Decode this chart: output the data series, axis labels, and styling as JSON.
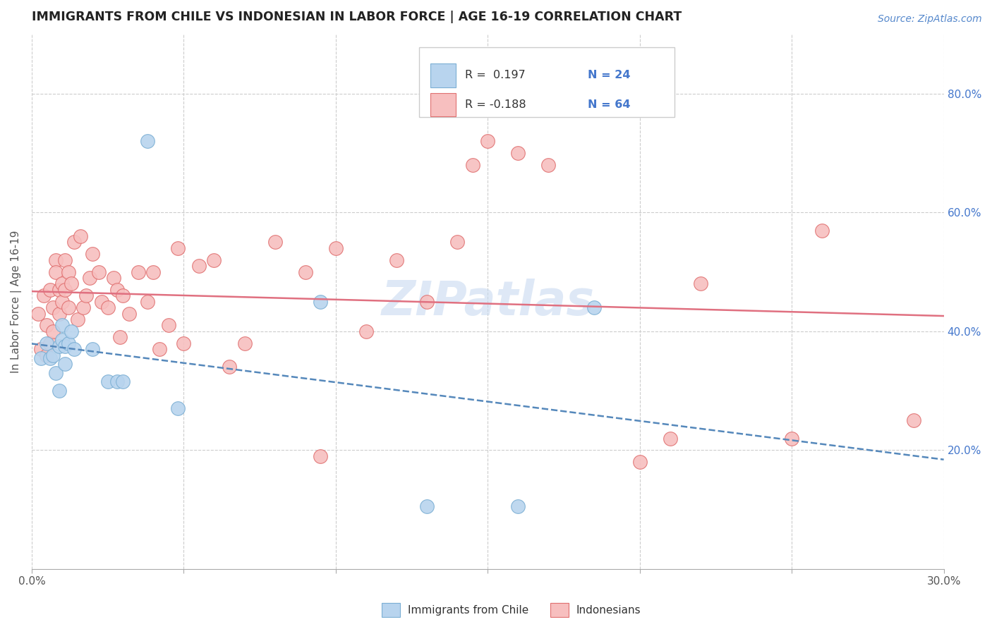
{
  "title": "IMMIGRANTS FROM CHILE VS INDONESIAN IN LABOR FORCE | AGE 16-19 CORRELATION CHART",
  "source": "Source: ZipAtlas.com",
  "ylabel": "In Labor Force | Age 16-19",
  "xlim": [
    0.0,
    0.3
  ],
  "ylim": [
    0.0,
    0.9
  ],
  "xticks": [
    0.0,
    0.05,
    0.1,
    0.15,
    0.2,
    0.25,
    0.3
  ],
  "xticklabels": [
    "0.0%",
    "",
    "",
    "",
    "",
    "",
    "30.0%"
  ],
  "ytick_positions": [
    0.2,
    0.4,
    0.6,
    0.8
  ],
  "ytick_labels": [
    "20.0%",
    "40.0%",
    "60.0%",
    "80.0%"
  ],
  "chile_fill": "#b8d4ee",
  "chile_edge": "#7bafd4",
  "indonesia_fill": "#f7bfbf",
  "indonesia_edge": "#e07070",
  "chile_line_color": "#5588bb",
  "indonesia_line_color": "#e07080",
  "legend_R_chile": "R =  0.197",
  "legend_N_chile": "N = 24",
  "legend_R_indonesia": "R = -0.188",
  "legend_N_indonesia": "N = 64",
  "watermark": "ZIPatlas",
  "chile_points_x": [
    0.003,
    0.005,
    0.006,
    0.007,
    0.008,
    0.009,
    0.009,
    0.01,
    0.01,
    0.011,
    0.011,
    0.012,
    0.013,
    0.014,
    0.02,
    0.025,
    0.028,
    0.03,
    0.038,
    0.048,
    0.095,
    0.13,
    0.16,
    0.185
  ],
  "chile_points_y": [
    0.355,
    0.38,
    0.355,
    0.36,
    0.33,
    0.3,
    0.375,
    0.385,
    0.41,
    0.345,
    0.375,
    0.38,
    0.4,
    0.37,
    0.37,
    0.315,
    0.315,
    0.315,
    0.72,
    0.27,
    0.45,
    0.105,
    0.105,
    0.44
  ],
  "indonesia_points_x": [
    0.002,
    0.003,
    0.004,
    0.005,
    0.005,
    0.006,
    0.006,
    0.007,
    0.007,
    0.008,
    0.008,
    0.009,
    0.009,
    0.01,
    0.01,
    0.011,
    0.011,
    0.012,
    0.012,
    0.013,
    0.014,
    0.015,
    0.016,
    0.017,
    0.018,
    0.019,
    0.02,
    0.022,
    0.023,
    0.025,
    0.027,
    0.028,
    0.029,
    0.03,
    0.032,
    0.035,
    0.038,
    0.04,
    0.042,
    0.045,
    0.048,
    0.05,
    0.055,
    0.06,
    0.065,
    0.07,
    0.08,
    0.09,
    0.095,
    0.1,
    0.11,
    0.12,
    0.13,
    0.14,
    0.145,
    0.15,
    0.16,
    0.17,
    0.2,
    0.21,
    0.22,
    0.25,
    0.26,
    0.29
  ],
  "indonesia_points_y": [
    0.43,
    0.37,
    0.46,
    0.36,
    0.41,
    0.38,
    0.47,
    0.44,
    0.4,
    0.52,
    0.5,
    0.47,
    0.43,
    0.48,
    0.45,
    0.52,
    0.47,
    0.5,
    0.44,
    0.48,
    0.55,
    0.42,
    0.56,
    0.44,
    0.46,
    0.49,
    0.53,
    0.5,
    0.45,
    0.44,
    0.49,
    0.47,
    0.39,
    0.46,
    0.43,
    0.5,
    0.45,
    0.5,
    0.37,
    0.41,
    0.54,
    0.38,
    0.51,
    0.52,
    0.34,
    0.38,
    0.55,
    0.5,
    0.19,
    0.54,
    0.4,
    0.52,
    0.45,
    0.55,
    0.68,
    0.72,
    0.7,
    0.68,
    0.18,
    0.22,
    0.48,
    0.22,
    0.57,
    0.25
  ]
}
